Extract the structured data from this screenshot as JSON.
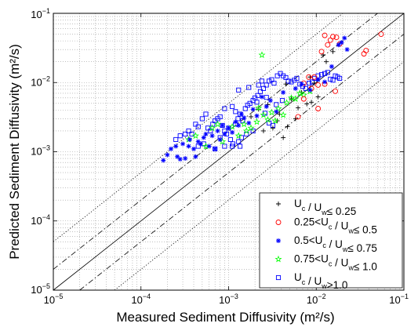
{
  "chart_data": {
    "type": "scatter",
    "xscale": "log",
    "yscale": "log",
    "xlim": [
      1e-05,
      0.1
    ],
    "ylim": [
      1e-05,
      0.1
    ],
    "grid": true,
    "xlabel": "Measured Sediment Diffusivity (m²/s)",
    "ylabel": "Predicted Sediment Diffusivity (m²/s)",
    "xticks": [
      {
        "base": "10",
        "exp": "−5",
        "v": 1e-05
      },
      {
        "base": "10",
        "exp": "−4",
        "v": 0.0001
      },
      {
        "base": "10",
        "exp": "−3",
        "v": 0.001
      },
      {
        "base": "10",
        "exp": "−2",
        "v": 0.01
      },
      {
        "base": "10",
        "exp": "−1",
        "v": 0.1
      }
    ],
    "yticks": [
      {
        "base": "10",
        "exp": "−5",
        "v": 1e-05
      },
      {
        "base": "10",
        "exp": "−4",
        "v": 0.0001
      },
      {
        "base": "10",
        "exp": "−3",
        "v": 0.001
      },
      {
        "base": "10",
        "exp": "−2",
        "v": 0.01
      },
      {
        "base": "10",
        "exp": "−1",
        "v": 0.1
      }
    ],
    "reference_lines": [
      {
        "factor": 1,
        "style": "solid"
      },
      {
        "factor": 2,
        "style": "dashdot"
      },
      {
        "factor": 0.5,
        "style": "dashdot"
      },
      {
        "factor": 5,
        "style": "dotted"
      },
      {
        "factor": 0.2,
        "style": "dotted"
      }
    ],
    "legend_position": "bottom-right",
    "legend": [
      {
        "marker": "plus",
        "color": "#000000",
        "label_parts": [
          [
            "U",
            ""
          ],
          [
            "c",
            "sub"
          ],
          [
            " / U",
            ""
          ],
          [
            "w",
            "sub"
          ],
          [
            "≤ 0.25",
            ""
          ]
        ]
      },
      {
        "marker": "circle",
        "color": "#ff0000",
        "label_parts": [
          [
            "0.25<U",
            ""
          ],
          [
            "c",
            "sub"
          ],
          [
            " / U",
            ""
          ],
          [
            "w",
            "sub"
          ],
          [
            "≤ 0.5",
            ""
          ]
        ]
      },
      {
        "marker": "asterisk",
        "color": "#0000ff",
        "label_parts": [
          [
            "0.5<U",
            ""
          ],
          [
            "c",
            "sub"
          ],
          [
            " / U",
            ""
          ],
          [
            "w",
            "sub"
          ],
          [
            "≤ 0.75",
            ""
          ]
        ]
      },
      {
        "marker": "star",
        "color": "#00ff00",
        "label_parts": [
          [
            "0.75<U",
            ""
          ],
          [
            "c",
            "sub"
          ],
          [
            " / U",
            ""
          ],
          [
            "w",
            "sub"
          ],
          [
            "≤ 1.0",
            ""
          ]
        ]
      },
      {
        "marker": "square",
        "color": "#0000ff",
        "label_parts": [
          [
            "U",
            ""
          ],
          [
            "c",
            "sub"
          ],
          [
            " / U",
            ""
          ],
          [
            "w",
            "sub"
          ],
          [
            ">1.0",
            ""
          ]
        ]
      }
    ],
    "series": [
      {
        "legend_index": 0,
        "points": [
          [
            0.0085,
            0.012
          ],
          [
            0.012,
            0.025
          ],
          [
            0.0032,
            0.0022
          ],
          [
            0.0042,
            0.0016
          ],
          [
            0.0028,
            0.0048
          ],
          [
            0.0036,
            0.0028
          ],
          [
            0.0052,
            0.0058
          ],
          [
            0.0062,
            0.0043
          ],
          [
            0.0088,
            0.0052
          ],
          [
            0.0155,
            0.028
          ],
          [
            0.0025,
            0.002
          ],
          [
            0.0018,
            0.0032
          ],
          [
            0.0045,
            0.0095
          ],
          [
            0.0068,
            0.0072
          ],
          [
            0.0095,
            0.0098
          ],
          [
            0.0105,
            0.0062
          ],
          [
            0.0038,
            0.0035
          ],
          [
            0.0022,
            0.0041
          ],
          [
            0.0058,
            0.003
          ],
          [
            0.013,
            0.02
          ],
          [
            0.0078,
            0.0049
          ],
          [
            0.0047,
            0.0023
          ]
        ]
      },
      {
        "legend_index": 1,
        "points": [
          [
            0.0125,
            0.048
          ],
          [
            0.0135,
            0.035
          ],
          [
            0.0145,
            0.041
          ],
          [
            0.0155,
            0.046
          ],
          [
            0.017,
            0.045
          ],
          [
            0.0185,
            0.036
          ],
          [
            0.0115,
            0.028
          ],
          [
            0.035,
            0.026
          ],
          [
            0.037,
            0.029
          ],
          [
            0.055,
            0.05
          ],
          [
            0.0095,
            0.012
          ],
          [
            0.0082,
            0.012
          ],
          [
            0.0105,
            0.0092
          ],
          [
            0.0072,
            0.0098
          ],
          [
            0.0165,
            0.0075
          ],
          [
            0.0125,
            0.0095
          ],
          [
            0.0062,
            0.0032
          ],
          [
            0.0105,
            0.0042
          ],
          [
            0.0072,
            0.0058
          ],
          [
            0.0088,
            0.0082
          ]
        ]
      },
      {
        "legend_index": 2,
        "points": [
          [
            0.00018,
            0.00075
          ],
          [
            0.0002,
            0.0009
          ],
          [
            0.00022,
            0.0011
          ],
          [
            0.00025,
            0.0012
          ],
          [
            0.00026,
            0.00085
          ],
          [
            0.00028,
            0.00078
          ],
          [
            0.0003,
            0.0013
          ],
          [
            0.00032,
            0.0008
          ],
          [
            0.00035,
            0.0012
          ],
          [
            0.00036,
            0.0015
          ],
          [
            0.0004,
            0.0011
          ],
          [
            0.00042,
            0.00085
          ],
          [
            0.00045,
            0.0014
          ],
          [
            0.00048,
            0.0013
          ],
          [
            0.00052,
            0.0016
          ],
          [
            0.00055,
            0.0018
          ],
          [
            0.0006,
            0.0012
          ],
          [
            0.00065,
            0.0017
          ],
          [
            0.0007,
            0.0011
          ],
          [
            0.00075,
            0.002
          ],
          [
            0.0008,
            0.0015
          ],
          [
            0.00085,
            0.0024
          ],
          [
            0.0009,
            0.0018
          ],
          [
            0.001,
            0.0022
          ],
          [
            0.0011,
            0.0019
          ],
          [
            0.0012,
            0.0027
          ],
          [
            0.0013,
            0.0024
          ],
          [
            0.0014,
            0.0035
          ],
          [
            0.0015,
            0.0031
          ],
          [
            0.0017,
            0.0026
          ],
          [
            0.0019,
            0.0041
          ],
          [
            0.0021,
            0.0033
          ],
          [
            0.0024,
            0.0062
          ],
          [
            0.0027,
            0.0045
          ],
          [
            0.003,
            0.0055
          ],
          [
            0.0035,
            0.0038
          ],
          [
            0.0042,
            0.0072
          ],
          [
            0.0058,
            0.0082
          ],
          [
            0.0068,
            0.0095
          ],
          [
            0.0085,
            0.0078
          ],
          [
            0.0105,
            0.011
          ],
          [
            0.0125,
            0.0102
          ],
          [
            0.015,
            0.017
          ],
          [
            0.018,
            0.035
          ],
          [
            0.0195,
            0.038
          ],
          [
            0.021,
            0.044
          ],
          [
            0.0225,
            0.03
          ]
        ]
      },
      {
        "legend_index": 3,
        "points": [
          [
            0.00035,
            0.0015
          ],
          [
            0.00042,
            0.0017
          ],
          [
            0.00055,
            0.0012
          ],
          [
            0.00065,
            0.0022
          ],
          [
            0.00075,
            0.0025
          ],
          [
            0.00085,
            0.0014
          ],
          [
            0.0011,
            0.0023
          ],
          [
            0.0013,
            0.0017
          ],
          [
            0.0015,
            0.0025
          ],
          [
            0.0016,
            0.002
          ],
          [
            0.0018,
            0.0022
          ],
          [
            0.0021,
            0.0027
          ],
          [
            0.0022,
            0.0043
          ],
          [
            0.0025,
            0.0034
          ],
          [
            0.0028,
            0.0029
          ],
          [
            0.0031,
            0.0037
          ],
          [
            0.0034,
            0.0028
          ],
          [
            0.0037,
            0.0042
          ],
          [
            0.0042,
            0.0034
          ],
          [
            0.0046,
            0.0051
          ],
          [
            0.0052,
            0.006
          ],
          [
            0.0058,
            0.0058
          ],
          [
            0.0065,
            0.007
          ],
          [
            0.0072,
            0.0066
          ],
          [
            0.0085,
            0.0075
          ],
          [
            0.0024,
            0.025
          ]
        ]
      },
      {
        "legend_index": 4,
        "points": [
          [
            0.00025,
            0.0015
          ],
          [
            0.00028,
            0.0017
          ],
          [
            0.00032,
            0.0018
          ],
          [
            0.00035,
            0.002
          ],
          [
            0.00038,
            0.0018
          ],
          [
            0.00042,
            0.0025
          ],
          [
            0.00045,
            0.0023
          ],
          [
            0.0005,
            0.003
          ],
          [
            0.00055,
            0.0035
          ],
          [
            0.00058,
            0.0022
          ],
          [
            0.00062,
            0.002
          ],
          [
            0.00066,
            0.0025
          ],
          [
            0.0007,
            0.0028
          ],
          [
            0.00075,
            0.003
          ],
          [
            0.0008,
            0.0032
          ],
          [
            0.00085,
            0.0024
          ],
          [
            0.0009,
            0.002
          ],
          [
            0.00095,
            0.0018
          ],
          [
            0.001,
            0.0022
          ],
          [
            0.00105,
            0.0015
          ],
          [
            0.00112,
            0.0013
          ],
          [
            0.0012,
            0.0025
          ],
          [
            0.00128,
            0.003
          ],
          [
            0.00135,
            0.0035
          ],
          [
            0.00145,
            0.0028
          ],
          [
            0.00155,
            0.0042
          ],
          [
            0.00165,
            0.0047
          ],
          [
            0.00175,
            0.005
          ],
          [
            0.0019,
            0.0055
          ],
          [
            0.002,
            0.006
          ],
          [
            0.00215,
            0.0065
          ],
          [
            0.0023,
            0.0074
          ],
          [
            0.0025,
            0.0082
          ],
          [
            0.0027,
            0.0092
          ],
          [
            0.0029,
            0.0105
          ],
          [
            0.0031,
            0.011
          ],
          [
            0.0033,
            0.0098
          ],
          [
            0.0036,
            0.0125
          ],
          [
            0.0039,
            0.0135
          ],
          [
            0.0042,
            0.0125
          ],
          [
            0.0045,
            0.0118
          ],
          [
            0.0048,
            0.0105
          ],
          [
            0.0052,
            0.0102
          ],
          [
            0.0056,
            0.0108
          ],
          [
            0.006,
            0.0115
          ],
          [
            0.0065,
            0.0095
          ],
          [
            0.007,
            0.0088
          ],
          [
            0.0076,
            0.0082
          ],
          [
            0.0083,
            0.0098
          ],
          [
            0.009,
            0.0102
          ],
          [
            0.0096,
            0.0115
          ],
          [
            0.0105,
            0.0125
          ],
          [
            0.0115,
            0.013
          ],
          [
            0.0125,
            0.0135
          ],
          [
            0.0135,
            0.014
          ],
          [
            0.0145,
            0.0112
          ],
          [
            0.0155,
            0.0108
          ],
          [
            0.0165,
            0.0125
          ],
          [
            0.0175,
            0.012
          ],
          [
            0.0185,
            0.0115
          ],
          [
            0.0022,
            0.0092
          ],
          [
            0.0011,
            0.0045
          ],
          [
            0.0009,
            0.0042
          ],
          [
            0.0013,
            0.0078
          ],
          [
            0.0017,
            0.0085
          ],
          [
            0.0024,
            0.0105
          ],
          [
            0.0009,
            0.0012
          ],
          [
            0.0011,
            0.0012
          ],
          [
            0.0013,
            0.0014
          ],
          [
            0.0007,
            0.0011
          ],
          [
            0.0008,
            0.0016
          ],
          [
            0.0014,
            0.0016
          ],
          [
            0.0016,
            0.0018
          ],
          [
            0.0019,
            0.002
          ],
          [
            0.0026,
            0.0036
          ],
          [
            0.0029,
            0.0026
          ],
          [
            0.0032,
            0.0024
          ],
          [
            0.00135,
            0.0012
          ],
          [
            0.0021,
            0.0052
          ],
          [
            0.00045,
            0.0012
          ],
          [
            0.00052,
            0.0013
          ],
          [
            0.0012,
            0.0038
          ],
          [
            0.0027,
            0.0061
          ],
          [
            0.0035,
            0.0048
          ],
          [
            0.0041,
            0.0055
          ]
        ]
      }
    ]
  }
}
